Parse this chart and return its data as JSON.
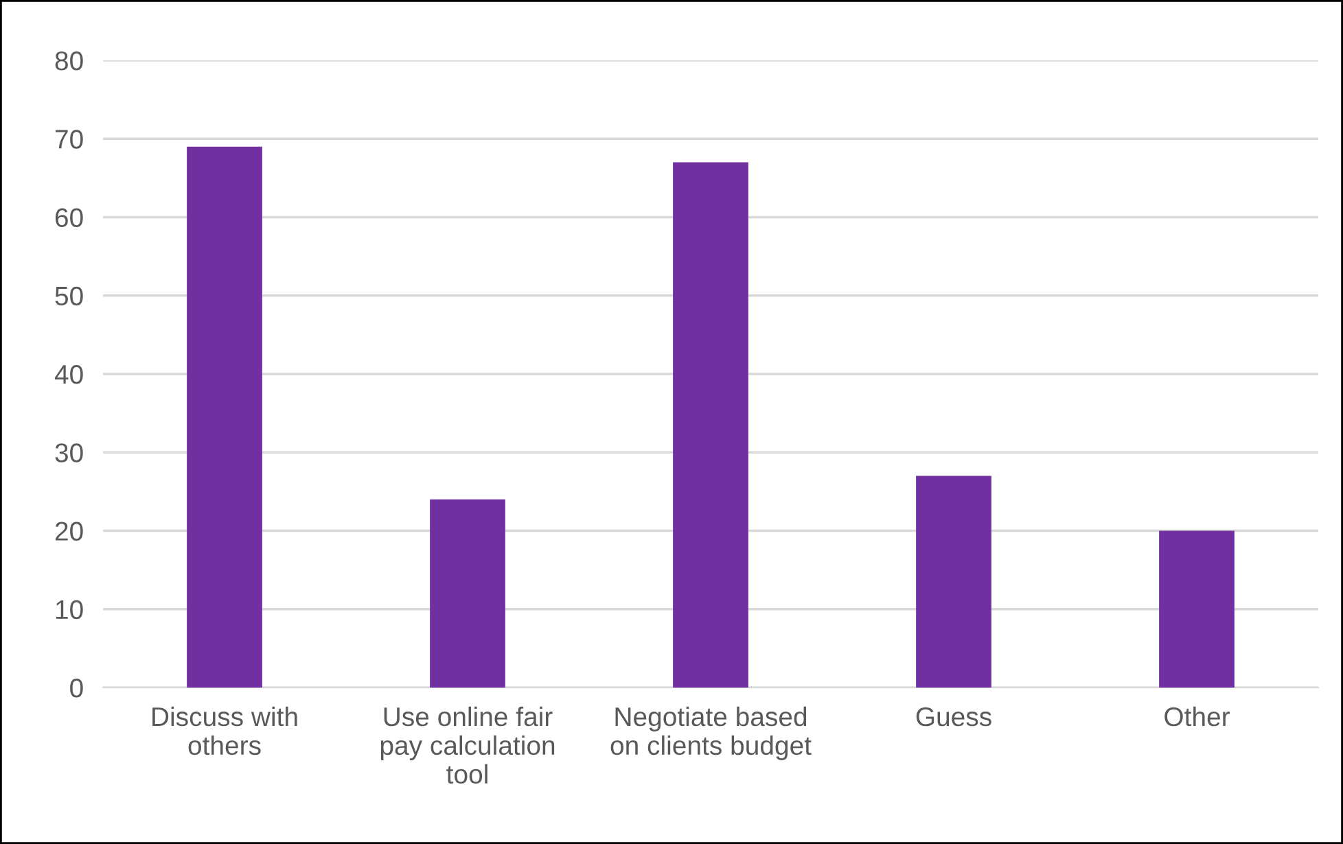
{
  "chart_data": {
    "type": "bar",
    "categories": [
      "Discuss with\nothers",
      "Use online fair\npay calculation\ntool",
      "Negotiate based\non clients budget",
      "Guess",
      "Other"
    ],
    "values": [
      69,
      24,
      67,
      27,
      20
    ],
    "color": "#7030a0",
    "ylim": [
      0,
      80
    ],
    "yticks": [
      0,
      10,
      20,
      30,
      40,
      50,
      60,
      70,
      80
    ],
    "grid": "y",
    "legend": false
  }
}
